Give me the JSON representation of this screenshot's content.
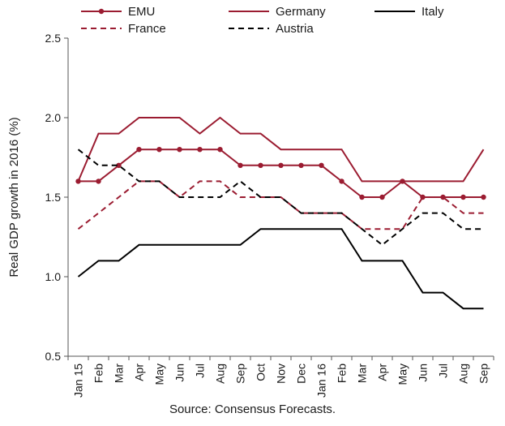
{
  "chart_data": {
    "type": "line",
    "title": "",
    "xlabel": "",
    "ylabel": "Real GDP growth in 2016 (%)",
    "ylim": [
      0.5,
      2.5
    ],
    "yticks": [
      "0.5",
      "1.0",
      "1.5",
      "2.0",
      "2.5"
    ],
    "categories": [
      "Jan 15",
      "Feb",
      "Mar",
      "Apr",
      "May",
      "Jun",
      "Jul",
      "Aug",
      "Sep",
      "Oct",
      "Nov",
      "Dec",
      "Jan 16",
      "Feb",
      "Mar",
      "Apr",
      "May",
      "Jun",
      "Jul",
      "Aug",
      "Sep"
    ],
    "legend_position": "top",
    "grid": false,
    "series": [
      {
        "name": "EMU",
        "color": "#9b1c31",
        "style": "solid",
        "markers": true,
        "values": [
          1.6,
          1.6,
          1.7,
          1.8,
          1.8,
          1.8,
          1.8,
          1.8,
          1.7,
          1.7,
          1.7,
          1.7,
          1.7,
          1.6,
          1.5,
          1.5,
          1.6,
          1.5,
          1.5,
          1.5,
          1.5
        ]
      },
      {
        "name": "Germany",
        "color": "#9b1c31",
        "style": "solid",
        "markers": false,
        "values": [
          1.6,
          1.9,
          1.9,
          2.0,
          2.0,
          2.0,
          1.9,
          2.0,
          1.9,
          1.9,
          1.8,
          1.8,
          1.8,
          1.8,
          1.6,
          1.6,
          1.6,
          1.6,
          1.6,
          1.6,
          1.8
        ]
      },
      {
        "name": "Italy",
        "color": "#000000",
        "style": "solid",
        "markers": false,
        "values": [
          1.0,
          1.1,
          1.1,
          1.2,
          1.2,
          1.2,
          1.2,
          1.2,
          1.2,
          1.3,
          1.3,
          1.3,
          1.3,
          1.3,
          1.1,
          1.1,
          1.1,
          0.9,
          0.9,
          0.8,
          0.8
        ]
      },
      {
        "name": "France",
        "color": "#9b1c31",
        "style": "dashed",
        "markers": false,
        "values": [
          1.3,
          1.4,
          1.5,
          1.6,
          1.6,
          1.5,
          1.6,
          1.6,
          1.5,
          1.5,
          1.5,
          1.4,
          1.4,
          1.4,
          1.3,
          1.3,
          1.3,
          1.5,
          1.5,
          1.4,
          1.4
        ]
      },
      {
        "name": "Austria",
        "color": "#000000",
        "style": "dashed",
        "markers": false,
        "values": [
          1.8,
          1.7,
          1.7,
          1.6,
          1.6,
          1.5,
          1.5,
          1.5,
          1.6,
          1.5,
          1.5,
          1.4,
          1.4,
          1.4,
          1.3,
          1.2,
          1.3,
          1.4,
          1.4,
          1.3,
          1.3
        ]
      }
    ]
  },
  "source": "Source: Consensus Forecasts."
}
